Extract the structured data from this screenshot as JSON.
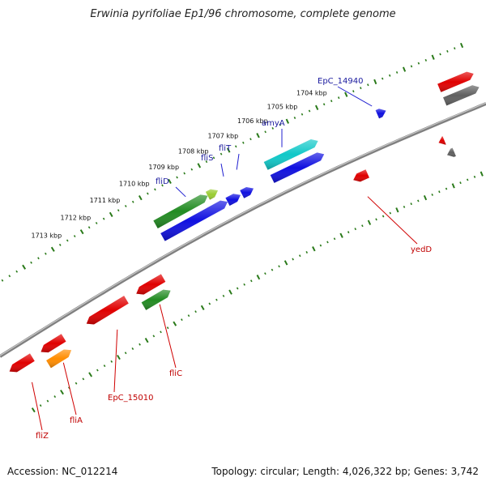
{
  "title": "Erwinia pyrifoliae Ep1/96 chromosome, complete genome",
  "footer": {
    "accession": "Accession: NC_012214",
    "summary": "Topology: circular; Length: 4,026,322 bp; Genes: 3,742"
  },
  "colors": {
    "forward_label": "#1a1a9e",
    "reverse_label": "#c00000",
    "tick": "#2a7a1a",
    "backbone": "#808080"
  },
  "ticks": [
    {
      "label": "1704 kbp",
      "fwd": 1.2
    },
    {
      "label": "1705 kbp",
      "fwd": 1.1
    },
    {
      "label": "1706 kbp",
      "fwd": 1.0
    },
    {
      "label": "1707 kbp",
      "fwd": 0.9
    },
    {
      "label": "1708 kbp",
      "fwd": 0.8
    },
    {
      "label": "1709 kbp",
      "fwd": 0.7
    },
    {
      "label": "1710 kbp",
      "fwd": 0.6
    },
    {
      "label": "1711 kbp",
      "fwd": 0.5
    },
    {
      "label": "1712 kbp",
      "fwd": 0.4
    },
    {
      "label": "1713 kbp",
      "fwd": 0.3
    }
  ],
  "genes": [
    {
      "name": "",
      "strand": "fwd",
      "start": 1.58,
      "end": 1.7,
      "color": "#e00000",
      "dir": 1
    },
    {
      "name": "",
      "strand": "fwd",
      "start": 1.58,
      "end": 1.7,
      "color": "#606060",
      "dir": 1,
      "row": 2
    },
    {
      "name": "",
      "strand": "fwd",
      "start": 1.365,
      "end": 1.395,
      "color": "#1010e0",
      "dir": 1
    },
    {
      "name": "amyA",
      "strand": "fwd",
      "start": 0.98,
      "end": 1.16,
      "color": "#10c8c8",
      "dir": 1
    },
    {
      "name": "",
      "strand": "fwd",
      "start": 0.98,
      "end": 1.16,
      "color": "#1010e0",
      "dir": 1,
      "row": 2
    },
    {
      "name": "fliT",
      "strand": "fwd",
      "start": 0.875,
      "end": 0.915,
      "color": "#1010e0",
      "dir": 1,
      "row": 2
    },
    {
      "name": "fliS",
      "strand": "fwd",
      "start": 0.825,
      "end": 0.87,
      "color": "#1010e0",
      "dir": 1,
      "row": 2
    },
    {
      "name": "",
      "strand": "fwd",
      "start": 0.78,
      "end": 0.815,
      "color": "#9acd32",
      "dir": 1
    },
    {
      "name": "fliD",
      "strand": "fwd",
      "start": 0.6,
      "end": 0.78,
      "color": "#228b22",
      "dir": 1
    },
    {
      "name": "",
      "strand": "fwd",
      "start": 0.6,
      "end": 0.825,
      "color": "#1010e0",
      "dir": 1,
      "row": 2
    }
  ],
  "rev_genes": [
    {
      "name": "",
      "start": 1.51,
      "end": 1.53,
      "color": "#e00000",
      "dir": -1
    },
    {
      "name": "",
      "start": 1.52,
      "end": 1.545,
      "color": "#606060",
      "dir": -1,
      "row": 2
    },
    {
      "name": "yedD",
      "start": 1.21,
      "end": 1.26,
      "color": "#e00000",
      "dir": -1
    },
    {
      "name": "",
      "start": 0.445,
      "end": 0.54,
      "color": "#e00000",
      "dir": -1
    },
    {
      "name": "fliC",
      "start": 0.445,
      "end": 0.54,
      "color": "#228b22",
      "dir": 1,
      "row": 2
    },
    {
      "name": "EpC_15010",
      "start": 0.27,
      "end": 0.41,
      "color": "#e00000",
      "dir": -1
    },
    {
      "name": "",
      "start": 0.11,
      "end": 0.19,
      "color": "#e00000",
      "dir": -1
    },
    {
      "name": "fliA",
      "start": 0.11,
      "end": 0.19,
      "color": "#ff8c00",
      "dir": 1,
      "row": 2
    },
    {
      "name": "fliZ",
      "start": 0.0,
      "end": 0.08,
      "color": "#e00000",
      "dir": -1
    }
  ],
  "labels": {
    "fwd": [
      {
        "text": "EpC_14940"
      },
      {
        "text": "amyA"
      },
      {
        "text": "fliT"
      },
      {
        "text": "fliS"
      },
      {
        "text": "fliD"
      }
    ],
    "rev": [
      {
        "text": "yedD"
      },
      {
        "text": "fliC"
      },
      {
        "text": "EpC_15010"
      },
      {
        "text": "fliA"
      },
      {
        "text": "fliZ"
      }
    ]
  }
}
